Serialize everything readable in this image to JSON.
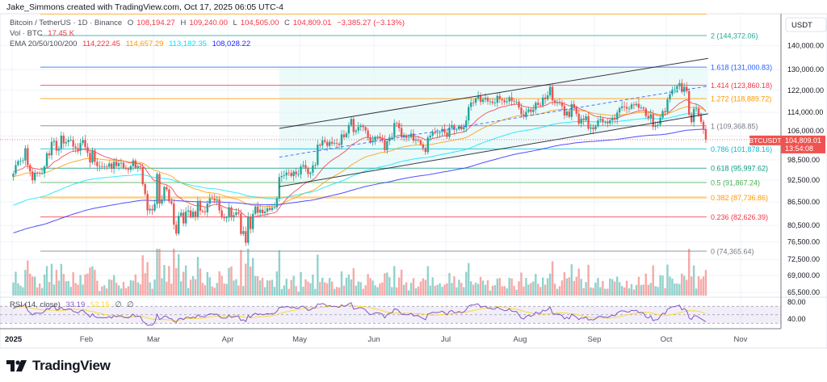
{
  "credit": "Jake_Simmons created with TradingView.com, Oct 17, 2025 06:05 UTC-4",
  "legend": {
    "symbol": "Bitcoin / TetherUS · 1D · Binance",
    "o_label": "O",
    "o": "108,194.27",
    "h_label": "H",
    "h": "109,240.00",
    "l_label": "L",
    "l": "104,505.00",
    "c_label": "C",
    "c": "104,809.01",
    "change": "−3,385.27 (−3.13%)",
    "vol_label": "Vol · BTC",
    "vol": "17.45 K",
    "ema_label": "EMA 20/50/100/200",
    "ema20": "114,222.45",
    "ema50": "114,657.29",
    "ema100": "113,182.35",
    "ema200": "108,028.22",
    "rsi_label": "RSI (14, close)",
    "rsi": "33.19",
    "rsi_ma": "52.15",
    "rsi_extra1": "∅",
    "rsi_extra2": "∅"
  },
  "axis": {
    "currency": "USDT",
    "symbol_tag": "BTCUSDT",
    "last_price": "104,809.01",
    "countdown": "13:54:08",
    "rsi_ticks": [
      "80.00",
      "40.00"
    ]
  },
  "logo": {
    "text": "TradingView"
  },
  "colors": {
    "up": "#26a69a",
    "down": "#ef5350",
    "ema20": "#f23645",
    "ema50": "#ff9800",
    "ema100": "#00e5ff",
    "ema200": "#2424ff",
    "rsi": "#7e57c2",
    "rsi_ma": "#fdd835"
  },
  "chart_data": {
    "type": "candlestick",
    "symbol": "BTCUSDT",
    "scale": "log",
    "grid": true,
    "x_range": [
      "2025-01-01",
      "2025-10-17"
    ],
    "close": [
      94.4,
      96.9,
      98.1,
      98.2,
      98.3,
      102.1,
      96.9,
      95.0,
      92.5,
      94.7,
      94.6,
      94.5,
      94.5,
      96.5,
      100.5,
      99.9,
      104.1,
      104.4,
      101.3,
      102.0,
      106.1,
      103.6,
      104.0,
      104.7,
      104.7,
      102.6,
      102.1,
      101.3,
      103.7,
      104.7,
      102.4,
      100.6,
      97.7,
      101.4,
      97.9,
      96.6,
      96.6,
      96.5,
      96.5,
      96.4,
      97.4,
      95.8,
      97.9,
      96.6,
      97.5,
      97.6,
      96.1,
      95.8,
      95.5,
      96.6,
      98.3,
      96.1,
      96.6,
      96.3,
      91.4,
      88.7,
      84.3,
      84.7,
      84.3,
      86.0,
      94.3,
      86.1,
      87.2,
      90.6,
      89.9,
      86.7,
      86.1,
      80.7,
      78.5,
      82.9,
      83.7,
      81.0,
      84.0,
      84.3,
      82.6,
      84.0,
      82.7,
      86.8,
      84.2,
      84.0,
      83.8,
      86.1,
      87.5,
      87.4,
      86.9,
      87.2,
      84.3,
      82.6,
      82.3,
      82.5,
      85.1,
      82.5,
      83.1,
      83.8,
      83.5,
      78.4,
      79.1,
      76.3,
      82.6,
      79.6,
      83.4,
      85.3,
      83.7,
      84.5,
      83.6,
      84.0,
      84.9,
      84.4,
      85.0,
      85.1,
      87.5,
      93.4,
      93.7,
      93.9,
      94.7,
      94.6,
      93.7,
      95.0,
      94.2,
      94.2,
      96.5,
      96.9,
      95.9,
      94.3,
      94.7,
      96.8,
      97.0,
      103.2,
      102.9,
      104.6,
      104.1,
      102.8,
      104.1,
      103.5,
      103.7,
      103.5,
      103.1,
      106.5,
      105.6,
      106.8,
      109.6,
      111.7,
      107.3,
      107.8,
      109.0,
      109.4,
      108.9,
      107.8,
      105.6,
      103.9,
      104.6,
      105.7,
      105.8,
      105.4,
      104.7,
      101.5,
      104.3,
      105.6,
      105.7,
      110.3,
      110.2,
      108.6,
      105.6,
      106.1,
      105.4,
      105.6,
      106.8,
      104.5,
      104.8,
      104.6,
      103.3,
      102.1,
      100.9,
      105.5,
      106.1,
      107.3,
      106.9,
      107.1,
      107.4,
      108.3,
      107.1,
      105.7,
      108.8,
      109.6,
      108.0,
      108.2,
      109.2,
      108.2,
      108.9,
      111.2,
      115.9,
      117.5,
      117.4,
      119.0,
      119.8,
      117.7,
      118.6,
      119.2,
      117.9,
      117.9,
      117.3,
      117.4,
      119.9,
      118.7,
      118.3,
      117.6,
      117.9,
      119.4,
      118.0,
      117.8,
      117.8,
      115.7,
      113.3,
      112.5,
      114.2,
      115.0,
      114.1,
      115.0,
      117.4,
      116.6,
      116.5,
      119.3,
      118.7,
      120.1,
      123.3,
      118.3,
      117.4,
      117.5,
      117.4,
      116.2,
      112.9,
      114.3,
      112.4,
      116.9,
      115.4,
      113.5,
      110.1,
      111.8,
      111.3,
      112.6,
      108.4,
      108.8,
      108.2,
      109.2,
      111.2,
      111.7,
      110.7,
      110.7,
      110.2,
      111.2,
      112.1,
      111.5,
      113.9,
      115.5,
      116.1,
      115.9,
      115.3,
      115.3,
      116.8,
      116.5,
      117.0,
      115.6,
      115.7,
      115.3,
      112.7,
      112.0,
      113.3,
      109.0,
      109.6,
      109.7,
      112.1,
      114.4,
      114.0,
      118.6,
      120.5,
      122.2,
      122.4,
      123.5,
      124.7,
      121.4,
      123.3,
      121.7,
      113.2,
      110.6,
      115.2,
      115.3,
      113.0,
      110.7,
      108.2,
      104.8
    ],
    "close_unit": "thousand USDT",
    "price_ticks": [
      "140,000.00",
      "130,000.00",
      "122,000.00",
      "114,000.00",
      "106,000.00",
      "98,500.00",
      "92,500.00",
      "86,500.00",
      "80,500.00",
      "76,500.00",
      "72,500.00",
      "69,000.00",
      "65,500.00"
    ],
    "time_ticks": [
      {
        "label": "2025",
        "date": "2025-01-01"
      },
      {
        "label": "Feb",
        "date": "2025-02-01"
      },
      {
        "label": "Mar",
        "date": "2025-03-01"
      },
      {
        "label": "Apr",
        "date": "2025-04-01"
      },
      {
        "label": "May",
        "date": "2025-05-01"
      },
      {
        "label": "Jun",
        "date": "2025-06-01"
      },
      {
        "label": "Jul",
        "date": "2025-07-01"
      },
      {
        "label": "Aug",
        "date": "2025-08-01"
      },
      {
        "label": "Sep",
        "date": "2025-09-01"
      },
      {
        "label": "Oct",
        "date": "2025-10-01"
      },
      {
        "label": "Nov",
        "date": "2025-11-01"
      }
    ],
    "fib_levels": [
      {
        "label": "2 (144,372.06)",
        "price": 144372.06,
        "color": "#22ab94"
      },
      {
        "label": "1.618 (131,000.83)",
        "price": 131000.83,
        "color": "#2962ff"
      },
      {
        "label": "1.414 (123,860.18)",
        "price": 123860.18,
        "color": "#f23645"
      },
      {
        "label": "1.272 (118,889.72)",
        "price": 118889.72,
        "color": "#ff9800"
      },
      {
        "label": "1 (109,368.85)",
        "price": 109368.85,
        "color": "#787b86"
      },
      {
        "label": "0.786 (101,878.16)",
        "price": 101878.16,
        "color": "#00bcd4"
      },
      {
        "label": "0.618 (95,997.62)",
        "price": 95997.62,
        "color": "#089981"
      },
      {
        "label": "0.5 (91,867.24)",
        "price": 91867.24,
        "color": "#4caf50"
      },
      {
        "label": "0.382 (87,736.86)",
        "price": 87736.86,
        "color": "#ff9800"
      },
      {
        "label": "0.236 (82,626.39)",
        "price": 82626.39,
        "color": "#f23645"
      },
      {
        "label": "0 (74,365.64)",
        "price": 74365.64,
        "color": "#787b86"
      }
    ],
    "channel": {
      "start": "2025-04-22",
      "end": "2025-10-18",
      "upper": [
        108500,
        134600
      ],
      "middle": [
        99300,
        123600
      ],
      "lower": [
        90700,
        113500
      ]
    },
    "last_price": 104809.01
  }
}
